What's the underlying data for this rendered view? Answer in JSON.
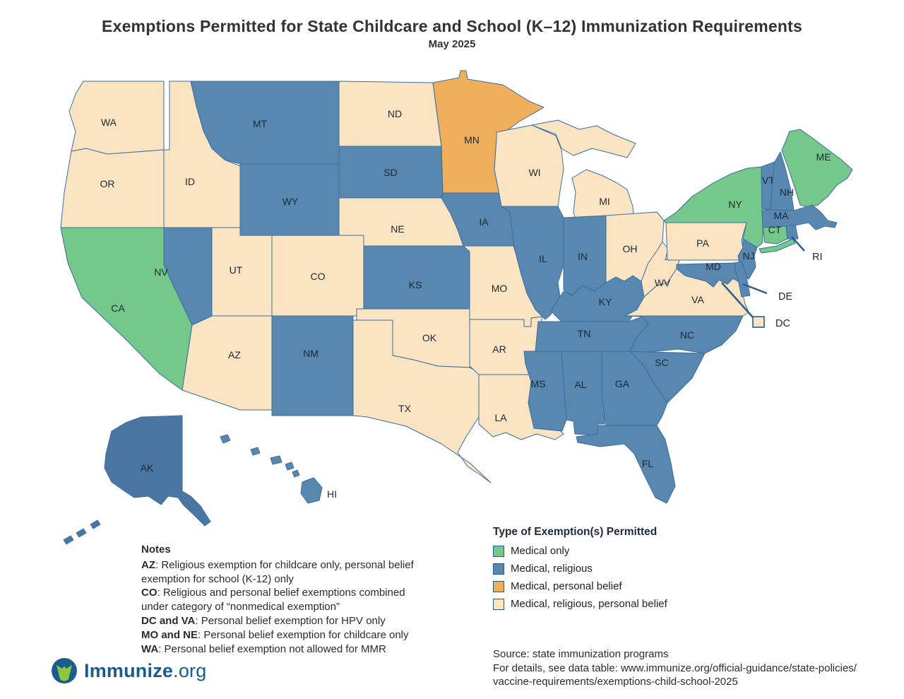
{
  "title": "Exemptions Permitted for State Childcare and School (K–12) Immunization Requirements",
  "subtitle": "May 2025",
  "legend": {
    "title": "Type of Exemption(s) Permitted",
    "items": [
      {
        "key": "medical",
        "label": "Medical only",
        "color": "#74C98A"
      },
      {
        "key": "medical_religious",
        "label": "Medical, religious",
        "color": "#5888AF"
      },
      {
        "key": "medical_personal",
        "label": "Medical, personal belief",
        "color": "#F0AF5A"
      },
      {
        "key": "medical_religious_personal",
        "label": "Medical, religious, personal belief",
        "color": "#FBE4C2"
      }
    ]
  },
  "map": {
    "border_color": "#3A6EA0",
    "callout_color": "#2B5F8E",
    "label_color": "#1d2733",
    "alaska_fill": "#4A76A3",
    "states": [
      {
        "abbr": "WA",
        "category": "medical_religious_personal"
      },
      {
        "abbr": "OR",
        "category": "medical_religious_personal"
      },
      {
        "abbr": "CA",
        "category": "medical"
      },
      {
        "abbr": "NV",
        "category": "medical_religious"
      },
      {
        "abbr": "ID",
        "category": "medical_religious_personal"
      },
      {
        "abbr": "UT",
        "category": "medical_religious_personal"
      },
      {
        "abbr": "AZ",
        "category": "medical_religious_personal"
      },
      {
        "abbr": "MT",
        "category": "medical_religious"
      },
      {
        "abbr": "WY",
        "category": "medical_religious"
      },
      {
        "abbr": "CO",
        "category": "medical_religious_personal"
      },
      {
        "abbr": "NM",
        "category": "medical_religious"
      },
      {
        "abbr": "ND",
        "category": "medical_religious_personal"
      },
      {
        "abbr": "SD",
        "category": "medical_religious"
      },
      {
        "abbr": "NE",
        "category": "medical_religious_personal"
      },
      {
        "abbr": "KS",
        "category": "medical_religious"
      },
      {
        "abbr": "OK",
        "category": "medical_religious_personal"
      },
      {
        "abbr": "TX",
        "category": "medical_religious_personal"
      },
      {
        "abbr": "MN",
        "category": "medical_personal"
      },
      {
        "abbr": "IA",
        "category": "medical_religious"
      },
      {
        "abbr": "MO",
        "category": "medical_religious_personal"
      },
      {
        "abbr": "AR",
        "category": "medical_religious_personal"
      },
      {
        "abbr": "LA",
        "category": "medical_religious_personal"
      },
      {
        "abbr": "WI",
        "category": "medical_religious_personal"
      },
      {
        "abbr": "IL",
        "category": "medical_religious"
      },
      {
        "abbr": "MI",
        "category": "medical_religious_personal"
      },
      {
        "abbr": "IN",
        "category": "medical_religious"
      },
      {
        "abbr": "OH",
        "category": "medical_religious_personal"
      },
      {
        "abbr": "KY",
        "category": "medical_religious"
      },
      {
        "abbr": "TN",
        "category": "medical_religious"
      },
      {
        "abbr": "MS",
        "category": "medical_religious"
      },
      {
        "abbr": "AL",
        "category": "medical_religious"
      },
      {
        "abbr": "GA",
        "category": "medical_religious"
      },
      {
        "abbr": "SC",
        "category": "medical_religious"
      },
      {
        "abbr": "NC",
        "category": "medical_religious"
      },
      {
        "abbr": "FL",
        "category": "medical_religious"
      },
      {
        "abbr": "VA",
        "category": "medical_religious_personal"
      },
      {
        "abbr": "WV",
        "category": "medical_religious_personal"
      },
      {
        "abbr": "PA",
        "category": "medical_religious_personal"
      },
      {
        "abbr": "NY",
        "category": "medical"
      },
      {
        "abbr": "VT",
        "category": "medical_religious"
      },
      {
        "abbr": "NH",
        "category": "medical_religious"
      },
      {
        "abbr": "ME",
        "category": "medical"
      },
      {
        "abbr": "MA",
        "category": "medical_religious"
      },
      {
        "abbr": "CT",
        "category": "medical"
      },
      {
        "abbr": "RI",
        "category": "medical_religious"
      },
      {
        "abbr": "NJ",
        "category": "medical_religious"
      },
      {
        "abbr": "MD",
        "category": "medical_religious"
      },
      {
        "abbr": "DE",
        "category": "medical_religious"
      },
      {
        "abbr": "DC",
        "category": "medical_religious_personal"
      },
      {
        "abbr": "AK",
        "category": "medical_religious"
      },
      {
        "abbr": "HI",
        "category": "medical_religious"
      }
    ]
  },
  "notes": {
    "title": "Notes",
    "items": [
      {
        "lead": "AZ",
        "text": ":   Religious exemption for childcare only, personal belief exemption for school (K-12) only"
      },
      {
        "lead": "CO",
        "text": ": Religious and personal belief exemptions combined under category of “nonmedical exemption”"
      },
      {
        "lead": "DC and VA",
        "text": ":  Personal belief exemption for HPV only"
      },
      {
        "lead": "MO and NE",
        "text": ":   Personal belief exemption for childcare only"
      },
      {
        "lead": "WA",
        "text": ": Personal belief exemption not allowed for MMR"
      }
    ]
  },
  "source": {
    "lines": [
      "Source: state immunization programs",
      "For details, see data table: www.immunize.org/official-guidance/state-policies/",
      "vaccine-requirements/exemptions-child-school-2025"
    ]
  },
  "logo": {
    "brand": "Immunize",
    "suffix": ".org",
    "brand_color": "#1B5C8D",
    "mark_green": "#8DC63F"
  }
}
